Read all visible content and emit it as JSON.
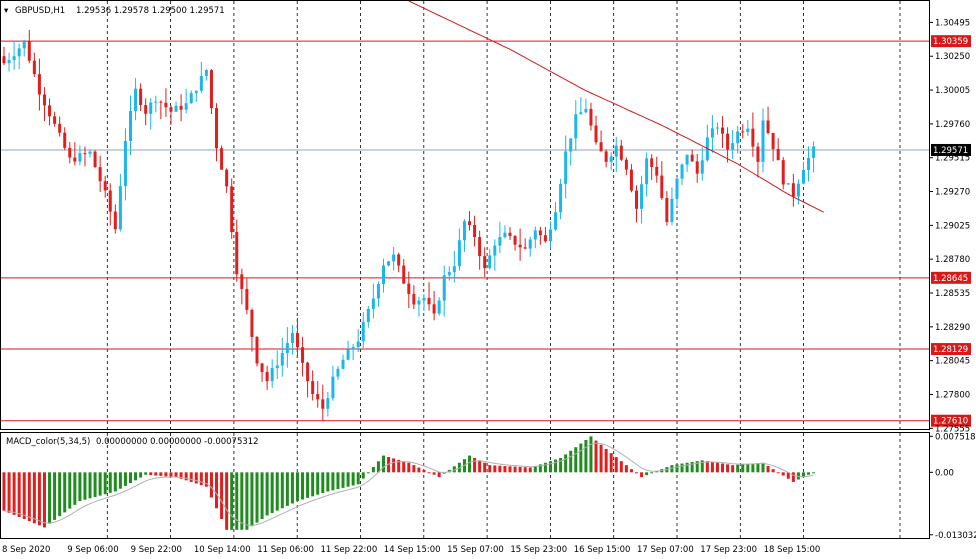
{
  "header": {
    "symbol": "GBPUSD,H1",
    "ohlc": "1.29536 1.29578 1.29500 1.29571"
  },
  "macd_header": {
    "title": "MACD_color(5,34,5)",
    "values": "0.00000000 0.00000000 -0.00075312"
  },
  "colors": {
    "bull": "#1ab7e8",
    "bear": "#e01e1e",
    "ma_line": "#d11919",
    "level_line": "#d61a1a",
    "current_price_line": "#8fa7b6",
    "macd_pos": "#1e8c1e",
    "macd_neg": "#e01e1e",
    "macd_signal": "#b0b0b0",
    "grid": "#000000"
  },
  "chart_data": {
    "type": "candlestick",
    "symbol": "GBPUSD",
    "timeframe": "H1",
    "ylim": [
      1.2755,
      1.3065
    ],
    "price_ticks": [
      "1.30495",
      "1.30250",
      "1.30005",
      "1.29760",
      "1.29515",
      "1.29270",
      "1.29025",
      "1.28780",
      "1.28535",
      "1.28290",
      "1.28045",
      "1.27800",
      "1.27555"
    ],
    "current_price": "1.29571",
    "levels": [
      {
        "price": 1.30359,
        "label": "1.30359"
      },
      {
        "price": 1.28645,
        "label": "1.28645"
      },
      {
        "price": 1.28129,
        "label": "1.28129"
      },
      {
        "price": 1.2761,
        "label": "1.27610"
      }
    ],
    "time_labels": [
      "8 Sep 2020",
      "9 Sep 06:00",
      "9 Sep 22:00",
      "10 Sep 14:00",
      "11 Sep 06:00",
      "11 Sep 22:00",
      "14 Sep 15:00",
      "15 Sep 07:00",
      "15 Sep 23:00",
      "16 Sep 15:00",
      "17 Sep 07:00",
      "17 Sep 23:00",
      "18 Sep 15:00"
    ],
    "close_path": [
      [
        0,
        1.302
      ],
      [
        4,
        1.3035
      ],
      [
        7,
        1.3
      ],
      [
        10,
        1.2975
      ],
      [
        13,
        1.295
      ],
      [
        17,
        1.2955
      ],
      [
        20,
        1.2925
      ],
      [
        22,
        1.29
      ],
      [
        24,
        1.2965
      ],
      [
        26,
        1.3
      ],
      [
        28,
        1.2985
      ],
      [
        30,
        1.2995
      ],
      [
        33,
        1.2985
      ],
      [
        36,
        1.299
      ],
      [
        40,
        1.3015
      ],
      [
        42,
        1.296
      ],
      [
        44,
        1.293
      ],
      [
        46,
        1.287
      ],
      [
        48,
        1.284
      ],
      [
        50,
        1.2805
      ],
      [
        52,
        1.279
      ],
      [
        55,
        1.281
      ],
      [
        57,
        1.2825
      ],
      [
        59,
        1.28
      ],
      [
        61,
        1.278
      ],
      [
        63,
        1.277
      ],
      [
        65,
        1.279
      ],
      [
        67,
        1.2805
      ],
      [
        70,
        1.282
      ],
      [
        73,
        1.285
      ],
      [
        75,
        1.2875
      ],
      [
        77,
        1.288
      ],
      [
        79,
        1.2862
      ],
      [
        81,
        1.2848
      ],
      [
        83,
        1.285
      ],
      [
        85,
        1.2836
      ],
      [
        87,
        1.2865
      ],
      [
        89,
        1.2875
      ],
      [
        91,
        1.2905
      ],
      [
        93,
        1.2895
      ],
      [
        95,
        1.287
      ],
      [
        97,
        1.289
      ],
      [
        99,
        1.2895
      ],
      [
        101,
        1.289
      ],
      [
        103,
        1.2885
      ],
      [
        105,
        1.29
      ],
      [
        107,
        1.289
      ],
      [
        109,
        1.2915
      ],
      [
        111,
        1.2955
      ],
      [
        113,
        1.298
      ],
      [
        115,
        1.2988
      ],
      [
        117,
        1.296
      ],
      [
        119,
        1.295
      ],
      [
        121,
        1.296
      ],
      [
        123,
        1.2945
      ],
      [
        125,
        1.2915
      ],
      [
        127,
        1.295
      ],
      [
        129,
        1.294
      ],
      [
        131,
        1.2905
      ],
      [
        133,
        1.2935
      ],
      [
        135,
        1.2955
      ],
      [
        137,
        1.294
      ],
      [
        139,
        1.2965
      ],
      [
        141,
        1.2975
      ],
      [
        143,
        1.2958
      ],
      [
        145,
        1.297
      ],
      [
        147,
        1.2975
      ],
      [
        149,
        1.295
      ],
      [
        150,
        1.298
      ],
      [
        152,
        1.296
      ],
      [
        154,
        1.2935
      ],
      [
        156,
        1.2925
      ],
      [
        158,
        1.2945
      ],
      [
        160,
        1.2957
      ]
    ],
    "ma_line": [
      [
        80,
        1.3065
      ],
      [
        100,
        1.303
      ],
      [
        115,
        1.3
      ],
      [
        130,
        1.2975
      ],
      [
        145,
        1.2947
      ],
      [
        155,
        1.2925
      ],
      [
        162,
        1.2912
      ]
    ],
    "macd_ylim": [
      -0.0135,
      0.008
    ],
    "macd_ticks": [
      "0.0075184",
      "0.00",
      "-0.013032"
    ],
    "macd_points": [
      [
        0,
        -0.008
      ],
      [
        8,
        -0.0115
      ],
      [
        15,
        -0.006
      ],
      [
        22,
        -0.004
      ],
      [
        28,
        -0.0005
      ],
      [
        34,
        -0.001
      ],
      [
        40,
        -0.003
      ],
      [
        44,
        -0.012
      ],
      [
        48,
        -0.012
      ],
      [
        52,
        -0.009
      ],
      [
        58,
        -0.006
      ],
      [
        64,
        -0.004
      ],
      [
        70,
        -0.0025
      ],
      [
        75,
        0.0035
      ],
      [
        80,
        0.002
      ],
      [
        86,
        -0.001
      ],
      [
        92,
        0.0035
      ],
      [
        96,
        0.0015
      ],
      [
        104,
        0.001
      ],
      [
        110,
        0.003
      ],
      [
        116,
        0.0075
      ],
      [
        120,
        0.004
      ],
      [
        126,
        -0.001
      ],
      [
        132,
        0.0015
      ],
      [
        138,
        0.0025
      ],
      [
        144,
        0.0015
      ],
      [
        150,
        0.002
      ],
      [
        156,
        -0.002
      ],
      [
        160,
        0.0
      ]
    ]
  }
}
